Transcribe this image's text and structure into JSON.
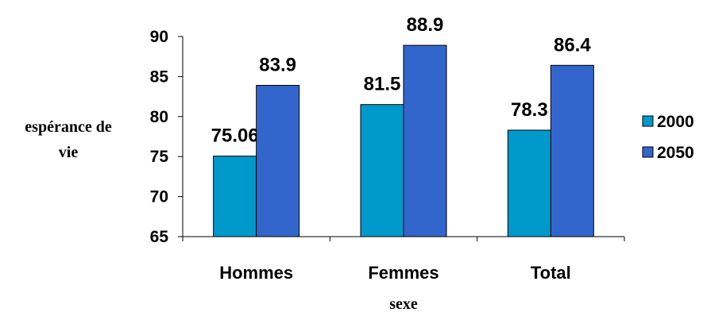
{
  "chart_data": {
    "type": "bar",
    "categories": [
      "Hommes",
      "Femmes",
      "Total"
    ],
    "series": [
      {
        "name": "2000",
        "values": [
          75.06,
          81.5,
          78.3
        ],
        "labels": [
          "75.06",
          "81.5",
          "78.3"
        ],
        "color": "#0099cc"
      },
      {
        "name": "2050",
        "values": [
          83.9,
          88.9,
          86.4
        ],
        "labels": [
          "83.9",
          "88.9",
          "86.4"
        ],
        "color": "#3366cc"
      }
    ],
    "title": "",
    "xlabel": "sexe",
    "ylabel_lines": [
      "espérance de",
      "vie"
    ],
    "ylim": [
      65,
      90
    ],
    "yticks": [
      "65",
      "70",
      "75",
      "80",
      "85",
      "90"
    ],
    "grid": false,
    "legend_position": "right"
  }
}
